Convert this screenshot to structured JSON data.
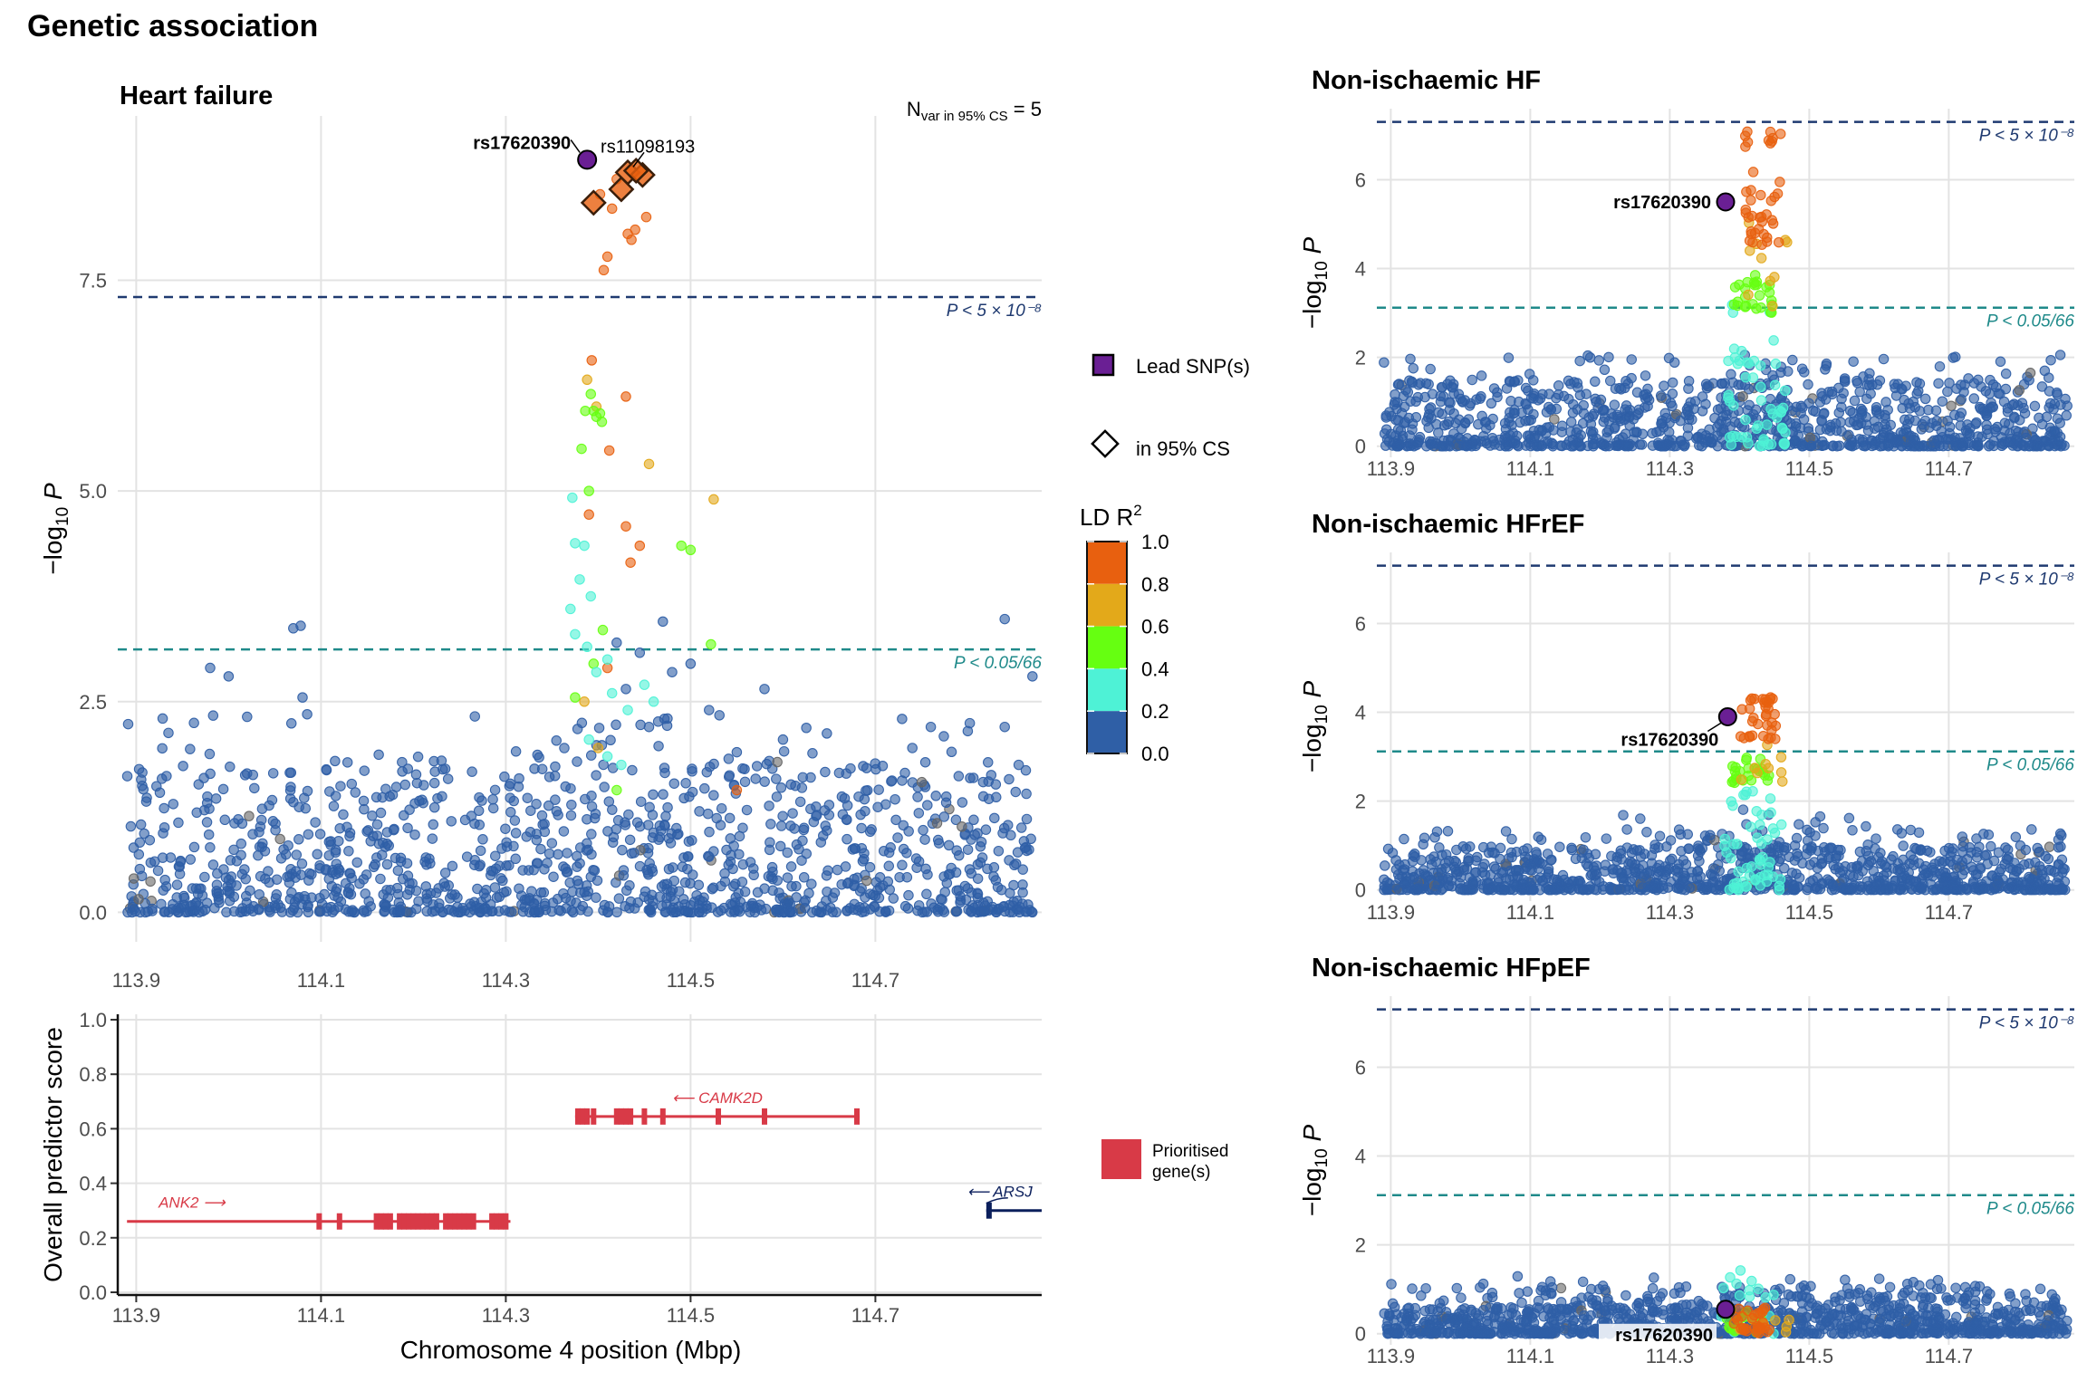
{
  "figure_title": "Genetic association",
  "colors": {
    "ld_bins": [
      "#2f5fa6",
      "#4ef2d6",
      "#66ff11",
      "#e3a91a",
      "#e8600f"
    ],
    "lead": "#6a1f94",
    "genome_line": "#1f3a70",
    "suggestive_line": "#1f8a8a",
    "prioritised": "#d83a47",
    "other_gene": "#0b1f5c"
  },
  "legend": {
    "lead_label": "Lead SNP(s)",
    "cs_label": "in 95% CS",
    "ld_title": "LD R",
    "ld_title_sup": "2",
    "ld_ticks": [
      "1.0",
      "0.8",
      "0.6",
      "0.4",
      "0.2",
      "0.0"
    ],
    "prioritised_label": [
      "Prioritised",
      "gene(s)"
    ]
  },
  "thresholds": {
    "genome_wide": {
      "value": 7.30103,
      "label": "P < 5 × 10⁻⁸"
    },
    "suggestive": {
      "value": 3.12,
      "label": "P < 0.05/66"
    }
  },
  "chart_data": [
    {
      "id": "heart_failure",
      "type": "scatter",
      "title": "Heart failure",
      "annotation": {
        "text": "N",
        "sub": "var in 95% CS",
        "suffix": " = 5"
      },
      "xlabel": "",
      "ylabel": "−log10 P",
      "xlim": [
        113.88,
        114.88
      ],
      "ylim": [
        -0.35,
        9.45
      ],
      "xticks": [
        "113.9",
        "114.1",
        "114.3",
        "114.5",
        "114.7"
      ],
      "xtick_values": [
        113.9,
        114.1,
        114.3,
        114.5,
        114.7
      ],
      "yticks": [
        "0.0",
        "2.5",
        "5.0",
        "7.5"
      ],
      "ytick_values": [
        0,
        2.5,
        5.0,
        7.5
      ],
      "lead": {
        "x": 114.388,
        "y": 8.93,
        "label": "rs17620390"
      },
      "cs_variants": [
        {
          "x": 114.432,
          "y": 8.78,
          "label": "rs11098193"
        },
        {
          "x": 114.448,
          "y": 8.75
        },
        {
          "x": 114.425,
          "y": 8.58
        },
        {
          "x": 114.395,
          "y": 8.42
        },
        {
          "x": 114.441,
          "y": 8.8
        }
      ],
      "noise": {
        "count": 1300,
        "max_y": 1.8,
        "peak_center": 114.42,
        "peak_width": 0.12
      },
      "signal": [
        {
          "x": 114.402,
          "y": 8.52,
          "ld": 4
        },
        {
          "x": 114.415,
          "y": 8.35,
          "ld": 4
        },
        {
          "x": 114.432,
          "y": 8.05,
          "ld": 4
        },
        {
          "x": 114.44,
          "y": 8.1,
          "ld": 4
        },
        {
          "x": 114.452,
          "y": 8.25,
          "ld": 4
        },
        {
          "x": 114.406,
          "y": 7.62,
          "ld": 4
        },
        {
          "x": 114.41,
          "y": 7.78,
          "ld": 4
        },
        {
          "x": 114.42,
          "y": 8.7,
          "ld": 4
        },
        {
          "x": 114.436,
          "y": 7.98,
          "ld": 4
        },
        {
          "x": 114.393,
          "y": 6.55,
          "ld": 4
        },
        {
          "x": 114.43,
          "y": 6.12,
          "ld": 4
        },
        {
          "x": 114.412,
          "y": 5.48,
          "ld": 4
        },
        {
          "x": 114.43,
          "y": 4.58,
          "ld": 4
        },
        {
          "x": 114.445,
          "y": 4.35,
          "ld": 4
        },
        {
          "x": 114.435,
          "y": 4.15,
          "ld": 4
        },
        {
          "x": 114.39,
          "y": 4.72,
          "ld": 4
        },
        {
          "x": 114.41,
          "y": 2.9,
          "ld": 4
        },
        {
          "x": 114.55,
          "y": 1.45,
          "ld": 4
        },
        {
          "x": 114.388,
          "y": 6.32,
          "ld": 3
        },
        {
          "x": 114.398,
          "y": 6.0,
          "ld": 3
        },
        {
          "x": 114.455,
          "y": 5.32,
          "ld": 3
        },
        {
          "x": 114.525,
          "y": 4.9,
          "ld": 3
        },
        {
          "x": 114.385,
          "y": 2.5,
          "ld": 3
        },
        {
          "x": 114.4,
          "y": 1.95,
          "ld": 3
        },
        {
          "x": 114.392,
          "y": 6.15,
          "ld": 2
        },
        {
          "x": 114.395,
          "y": 5.95,
          "ld": 2
        },
        {
          "x": 114.398,
          "y": 5.88,
          "ld": 2
        },
        {
          "x": 114.402,
          "y": 5.92,
          "ld": 2
        },
        {
          "x": 114.404,
          "y": 5.82,
          "ld": 2
        },
        {
          "x": 114.386,
          "y": 5.95,
          "ld": 2
        },
        {
          "x": 114.382,
          "y": 5.5,
          "ld": 2
        },
        {
          "x": 114.39,
          "y": 5.0,
          "ld": 2
        },
        {
          "x": 114.5,
          "y": 4.3,
          "ld": 2
        },
        {
          "x": 114.49,
          "y": 4.35,
          "ld": 2
        },
        {
          "x": 114.522,
          "y": 3.18,
          "ld": 2
        },
        {
          "x": 114.405,
          "y": 3.35,
          "ld": 2
        },
        {
          "x": 114.395,
          "y": 2.95,
          "ld": 2
        },
        {
          "x": 114.375,
          "y": 2.55,
          "ld": 2
        },
        {
          "x": 114.42,
          "y": 1.45,
          "ld": 2
        },
        {
          "x": 114.372,
          "y": 4.92,
          "ld": 1
        },
        {
          "x": 114.375,
          "y": 4.38,
          "ld": 1
        },
        {
          "x": 114.385,
          "y": 4.35,
          "ld": 1
        },
        {
          "x": 114.38,
          "y": 3.95,
          "ld": 1
        },
        {
          "x": 114.392,
          "y": 3.75,
          "ld": 1
        },
        {
          "x": 114.37,
          "y": 3.6,
          "ld": 1
        },
        {
          "x": 114.375,
          "y": 3.3,
          "ld": 1
        },
        {
          "x": 114.388,
          "y": 3.15,
          "ld": 1
        },
        {
          "x": 114.41,
          "y": 3.0,
          "ld": 1
        },
        {
          "x": 114.398,
          "y": 2.85,
          "ld": 1
        },
        {
          "x": 114.415,
          "y": 2.6,
          "ld": 1
        },
        {
          "x": 114.432,
          "y": 2.4,
          "ld": 1
        },
        {
          "x": 114.45,
          "y": 2.7,
          "ld": 1
        },
        {
          "x": 114.46,
          "y": 2.5,
          "ld": 1
        },
        {
          "x": 114.39,
          "y": 2.05,
          "ld": 1
        },
        {
          "x": 114.41,
          "y": 1.85,
          "ld": 1
        },
        {
          "x": 114.425,
          "y": 1.75,
          "ld": 1
        }
      ],
      "blue_high": [
        {
          "x": 114.07,
          "y": 3.37
        },
        {
          "x": 114.078,
          "y": 3.4
        },
        {
          "x": 113.98,
          "y": 2.9
        },
        {
          "x": 114.0,
          "y": 2.8
        },
        {
          "x": 114.02,
          "y": 2.32
        },
        {
          "x": 114.08,
          "y": 2.55
        },
        {
          "x": 114.085,
          "y": 2.35
        },
        {
          "x": 114.84,
          "y": 3.48
        },
        {
          "x": 114.87,
          "y": 2.8
        },
        {
          "x": 114.47,
          "y": 3.45
        },
        {
          "x": 114.445,
          "y": 3.08
        },
        {
          "x": 114.48,
          "y": 2.85
        },
        {
          "x": 114.43,
          "y": 2.65
        },
        {
          "x": 114.58,
          "y": 2.65
        },
        {
          "x": 114.42,
          "y": 3.2
        },
        {
          "x": 114.8,
          "y": 2.15
        },
        {
          "x": 114.84,
          "y": 2.2
        },
        {
          "x": 114.76,
          "y": 2.2
        },
        {
          "x": 114.74,
          "y": 1.95
        },
        {
          "x": 114.5,
          "y": 2.95
        },
        {
          "x": 114.52,
          "y": 2.4
        },
        {
          "x": 114.55,
          "y": 1.9
        },
        {
          "x": 114.455,
          "y": 2.2
        },
        {
          "x": 114.475,
          "y": 2.3
        },
        {
          "x": 114.6,
          "y": 2.05
        },
        {
          "x": 114.63,
          "y": 1.6
        }
      ]
    },
    {
      "id": "ni_hf",
      "type": "scatter",
      "title": "Non-ischaemic HF",
      "ylabel": "−log10 P",
      "xlim": [
        113.88,
        114.88
      ],
      "ylim": [
        -0.25,
        7.6
      ],
      "xticks": [
        "113.9",
        "114.1",
        "114.3",
        "114.5",
        "114.7"
      ],
      "xtick_values": [
        113.9,
        114.1,
        114.3,
        114.5,
        114.7
      ],
      "yticks": [
        "0",
        "2",
        "4",
        "6"
      ],
      "ytick_values": [
        0,
        2,
        4,
        6
      ],
      "lead": {
        "x": 114.38,
        "y": 5.5,
        "label": "rs17620390"
      },
      "noise": {
        "count": 1100,
        "max_y": 1.6,
        "peak_center": 114.42,
        "peak_width": 0.11,
        "spread": 1.5
      },
      "signal_spec": {
        "x_center": 114.425,
        "x_spread": 0.035,
        "orange_y": [
          4.5,
          7.2
        ],
        "orange_n": 40,
        "green_y": [
          3.0,
          3.9
        ],
        "green_n": 26,
        "cyan_n": 55,
        "cyan_y": [
          0,
          3.2
        ]
      }
    },
    {
      "id": "ni_hfref",
      "type": "scatter",
      "title": "Non-ischaemic HFrEF",
      "ylabel": "−log10 P",
      "xlim": [
        113.88,
        114.88
      ],
      "ylim": [
        -0.25,
        7.6
      ],
      "xticks": [
        "113.9",
        "114.1",
        "114.3",
        "114.5",
        "114.7"
      ],
      "xtick_values": [
        113.9,
        114.1,
        114.3,
        114.5,
        114.7
      ],
      "yticks": [
        "0",
        "2",
        "4",
        "6"
      ],
      "ytick_values": [
        0,
        2,
        4,
        6
      ],
      "lead": {
        "x": 114.383,
        "y": 3.9,
        "label": "rs17620390"
      },
      "noise": {
        "count": 1100,
        "max_y": 1.4,
        "peak_center": 114.41,
        "peak_width": 0.12,
        "spread": 1.0
      },
      "signal_spec": {
        "x_center": 114.42,
        "x_spread": 0.035,
        "orange_y": [
          3.4,
          4.35
        ],
        "orange_n": 34,
        "green_y": [
          2.4,
          3.0
        ],
        "green_n": 24,
        "cyan_n": 55,
        "cyan_y": [
          0,
          2.3
        ]
      }
    },
    {
      "id": "ni_hfpef",
      "type": "scatter",
      "title": "Non-ischaemic HFpEF",
      "ylabel": "−log10 P",
      "xlim": [
        113.88,
        114.88
      ],
      "ylim": [
        -0.25,
        7.6
      ],
      "xticks": [
        "113.9",
        "114.1",
        "114.3",
        "114.5",
        "114.7"
      ],
      "xtick_values": [
        113.9,
        114.1,
        114.3,
        114.5,
        114.7
      ],
      "yticks": [
        "0",
        "2",
        "4",
        "6"
      ],
      "ytick_values": [
        0,
        2,
        4,
        6
      ],
      "lead": {
        "x": 114.38,
        "y": 0.55,
        "label": "rs17620390"
      },
      "noise": {
        "count": 1100,
        "max_y": 1.0,
        "peak_center": 114.5,
        "peak_width": 0.5,
        "spread": 0.6
      },
      "signal_spec": {
        "x_center": 114.41,
        "x_spread": 0.035,
        "orange_y": [
          0.0,
          0.6
        ],
        "orange_n": 30,
        "green_y": [
          0.0,
          0.6
        ],
        "green_n": 14,
        "cyan_n": 20,
        "cyan_y": [
          0,
          1.5
        ]
      }
    },
    {
      "id": "genes",
      "type": "gene_track",
      "xlabel": "Chromosome 4 position (Mbp)",
      "ylabel": "Overall predictor score",
      "xlim": [
        113.88,
        114.88
      ],
      "ylim": [
        -0.01,
        1.02
      ],
      "xticks": [
        "113.9",
        "114.1",
        "114.3",
        "114.5",
        "114.7"
      ],
      "xtick_values": [
        113.9,
        114.1,
        114.3,
        114.5,
        114.7
      ],
      "yticks": [
        "0.0",
        "0.2",
        "0.4",
        "0.6",
        "0.8",
        "1.0"
      ],
      "ytick_values": [
        0.0,
        0.2,
        0.4,
        0.6,
        0.8,
        1.0
      ],
      "genes": [
        {
          "name": "ANK2",
          "arrow": "right",
          "start": 113.89,
          "end": 114.305,
          "score": 0.26,
          "prioritised": true,
          "exons": [
            114.098,
            114.12,
            114.16,
            114.165,
            114.17,
            114.175,
            114.185,
            114.19,
            114.195,
            114.2,
            114.205,
            114.21,
            114.215,
            114.22,
            114.225,
            114.235,
            114.24,
            114.245,
            114.25,
            114.255,
            114.26,
            114.265,
            114.285,
            114.29,
            114.295,
            114.3
          ]
        },
        {
          "name": "CAMK2D",
          "arrow": "left",
          "start": 114.375,
          "end": 114.683,
          "score": 0.645,
          "prioritised": true,
          "exons": [
            114.378,
            114.383,
            114.388,
            114.395,
            114.42,
            114.425,
            114.43,
            114.435,
            114.45,
            114.47,
            114.53,
            114.58,
            114.68
          ]
        },
        {
          "name": "ARSJ",
          "arrow": "left",
          "start": 114.82,
          "end": 114.88,
          "score": 0.3,
          "prioritised": false,
          "exons": [
            114.823
          ]
        }
      ]
    }
  ]
}
